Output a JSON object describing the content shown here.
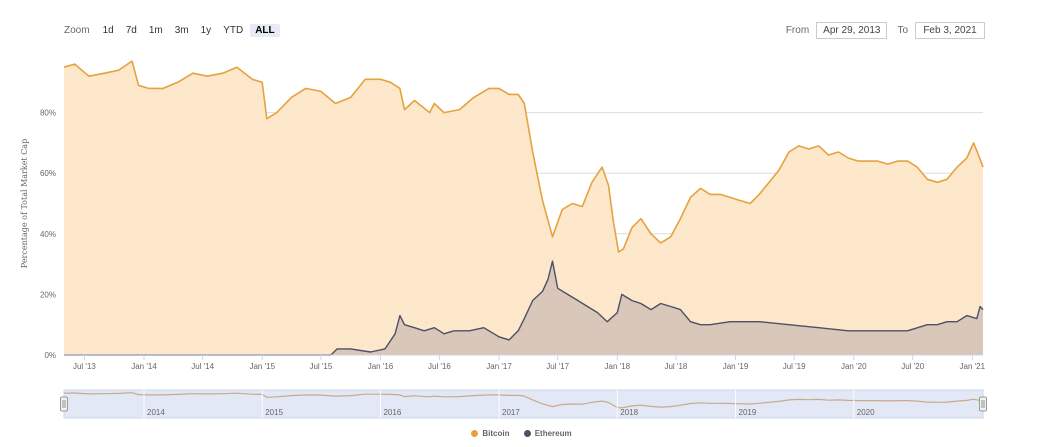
{
  "zoom": {
    "label": "Zoom",
    "buttons": [
      {
        "label": "1d"
      },
      {
        "label": "7d"
      },
      {
        "label": "1m"
      },
      {
        "label": "3m"
      },
      {
        "label": "1y"
      },
      {
        "label": "YTD"
      },
      {
        "label": "ALL",
        "active": true
      }
    ]
  },
  "range": {
    "from_label": "From",
    "from_value": "Apr 29, 2013",
    "to_label": "To",
    "to_value": "Feb 3, 2021"
  },
  "colors": {
    "bitcoin_line": "#e5a23f",
    "bitcoin_fill": "#fde8cc",
    "ethereum_line": "#4e5066",
    "ethereum_fill": "#d9c7ba",
    "grid": "#dddddd",
    "navigator_bg": "#e3e8f6",
    "navigator_line": "#c9a98a"
  },
  "chart_data": {
    "type": "area",
    "ylabel": "Percentage of Total Market Cap",
    "ylim": [
      0,
      100
    ],
    "y_ticks": [
      0,
      20,
      40,
      60,
      80
    ],
    "y_tick_labels": [
      "0%",
      "20%",
      "40%",
      "60%",
      "80%"
    ],
    "x_range": [
      "2013-04-29",
      "2021-02-03"
    ],
    "x_ticks": [
      {
        "date": "2013-07-01",
        "label": "Jul '13"
      },
      {
        "date": "2014-01-01",
        "label": "Jan '14"
      },
      {
        "date": "2014-07-01",
        "label": "Jul '14"
      },
      {
        "date": "2015-01-01",
        "label": "Jan '15"
      },
      {
        "date": "2015-07-01",
        "label": "Jul '15"
      },
      {
        "date": "2016-01-01",
        "label": "Jan '16"
      },
      {
        "date": "2016-07-01",
        "label": "Jul '16"
      },
      {
        "date": "2017-01-01",
        "label": "Jan '17"
      },
      {
        "date": "2017-07-01",
        "label": "Jul '17"
      },
      {
        "date": "2018-01-01",
        "label": "Jan '18"
      },
      {
        "date": "2018-07-01",
        "label": "Jul '18"
      },
      {
        "date": "2019-01-01",
        "label": "Jan '19"
      },
      {
        "date": "2019-07-01",
        "label": "Jul '19"
      },
      {
        "date": "2020-01-01",
        "label": "Jan '20"
      },
      {
        "date": "2020-07-01",
        "label": "Jul '20"
      },
      {
        "date": "2021-01-01",
        "label": "Jan '21"
      }
    ],
    "navigator_ticks": [
      {
        "date": "2014-01-01",
        "label": "2014"
      },
      {
        "date": "2015-01-01",
        "label": "2015"
      },
      {
        "date": "2016-01-01",
        "label": "2016"
      },
      {
        "date": "2017-01-01",
        "label": "2017"
      },
      {
        "date": "2018-01-01",
        "label": "2018"
      },
      {
        "date": "2019-01-01",
        "label": "2019"
      },
      {
        "date": "2020-01-01",
        "label": "2020"
      }
    ],
    "grid": true,
    "legend_position": "bottom-center",
    "series": [
      {
        "name": "Bitcoin",
        "x": [
          "2013-04-29",
          "2013-06-01",
          "2013-07-15",
          "2013-09-01",
          "2013-10-15",
          "2013-11-25",
          "2013-12-15",
          "2014-01-15",
          "2014-03-01",
          "2014-04-15",
          "2014-06-01",
          "2014-07-15",
          "2014-09-01",
          "2014-10-15",
          "2014-12-01",
          "2015-01-01",
          "2015-01-15",
          "2015-02-15",
          "2015-04-01",
          "2015-05-15",
          "2015-07-01",
          "2015-08-15",
          "2015-10-01",
          "2015-11-15",
          "2016-01-01",
          "2016-02-01",
          "2016-03-01",
          "2016-03-15",
          "2016-04-15",
          "2016-06-01",
          "2016-06-15",
          "2016-07-15",
          "2016-09-01",
          "2016-10-15",
          "2016-12-01",
          "2017-01-01",
          "2017-02-01",
          "2017-03-01",
          "2017-03-20",
          "2017-04-15",
          "2017-05-15",
          "2017-06-15",
          "2017-07-15",
          "2017-08-15",
          "2017-09-15",
          "2017-10-15",
          "2017-11-15",
          "2017-12-05",
          "2017-12-20",
          "2018-01-05",
          "2018-01-20",
          "2018-02-15",
          "2018-03-15",
          "2018-04-15",
          "2018-05-15",
          "2018-06-15",
          "2018-07-15",
          "2018-08-15",
          "2018-09-15",
          "2018-10-15",
          "2018-11-15",
          "2018-12-15",
          "2019-01-15",
          "2019-02-15",
          "2019-03-15",
          "2019-04-15",
          "2019-05-15",
          "2019-06-15",
          "2019-07-15",
          "2019-08-15",
          "2019-09-15",
          "2019-10-15",
          "2019-11-15",
          "2019-12-15",
          "2020-01-15",
          "2020-02-15",
          "2020-03-15",
          "2020-04-15",
          "2020-05-15",
          "2020-06-15",
          "2020-07-15",
          "2020-08-15",
          "2020-09-15",
          "2020-10-15",
          "2020-11-15",
          "2020-12-15",
          "2021-01-05",
          "2021-01-20",
          "2021-02-03"
        ],
        "values": [
          95,
          96,
          92,
          93,
          94,
          97,
          89,
          88,
          88,
          90,
          93,
          92,
          93,
          95,
          91,
          90,
          78,
          80,
          85,
          88,
          87,
          83,
          85,
          91,
          91,
          90,
          88,
          81,
          84,
          80,
          83,
          80,
          81,
          85,
          88,
          88,
          86,
          86,
          83,
          67,
          51,
          39,
          48,
          50,
          49,
          57,
          62,
          56,
          44,
          34,
          35,
          42,
          45,
          40,
          37,
          39,
          45,
          52,
          55,
          53,
          53,
          52,
          51,
          50,
          53,
          57,
          61,
          67,
          69,
          68,
          69,
          66,
          67,
          65,
          64,
          64,
          64,
          63,
          64,
          64,
          62,
          58,
          57,
          58,
          62,
          65,
          70,
          66,
          62
        ]
      },
      {
        "name": "Ethereum",
        "x": [
          "2013-04-29",
          "2015-08-01",
          "2015-08-20",
          "2015-10-01",
          "2015-12-01",
          "2016-01-15",
          "2016-02-15",
          "2016-03-01",
          "2016-03-15",
          "2016-04-15",
          "2016-05-15",
          "2016-06-15",
          "2016-07-01",
          "2016-07-15",
          "2016-08-15",
          "2016-10-01",
          "2016-11-15",
          "2017-01-01",
          "2017-02-01",
          "2017-03-01",
          "2017-03-20",
          "2017-04-15",
          "2017-05-15",
          "2017-06-01",
          "2017-06-15",
          "2017-07-01",
          "2017-08-01",
          "2017-09-01",
          "2017-10-01",
          "2017-11-01",
          "2017-12-01",
          "2018-01-01",
          "2018-01-15",
          "2018-02-15",
          "2018-03-15",
          "2018-04-15",
          "2018-05-15",
          "2018-06-15",
          "2018-07-15",
          "2018-08-15",
          "2018-09-15",
          "2018-10-15",
          "2018-12-15",
          "2019-03-15",
          "2019-06-15",
          "2019-09-15",
          "2019-12-15",
          "2020-03-15",
          "2020-06-15",
          "2020-08-15",
          "2020-09-15",
          "2020-10-15",
          "2020-11-15",
          "2020-12-15",
          "2021-01-15",
          "2021-01-25",
          "2021-02-03"
        ],
        "values": [
          0,
          0,
          2,
          2,
          1,
          2,
          7,
          13,
          10,
          9,
          8,
          9,
          8,
          7,
          8,
          8,
          9,
          6,
          5,
          8,
          12,
          18,
          21,
          25,
          31,
          22,
          20,
          18,
          16,
          14,
          11,
          14,
          20,
          18,
          17,
          15,
          17,
          16,
          15,
          11,
          10,
          10,
          11,
          11,
          10,
          9,
          8,
          8,
          8,
          10,
          10,
          11,
          11,
          13,
          12,
          16,
          15
        ]
      }
    ]
  },
  "legend": {
    "bitcoin_label": "Bitcoin",
    "ethereum_label": "Ethereum"
  }
}
